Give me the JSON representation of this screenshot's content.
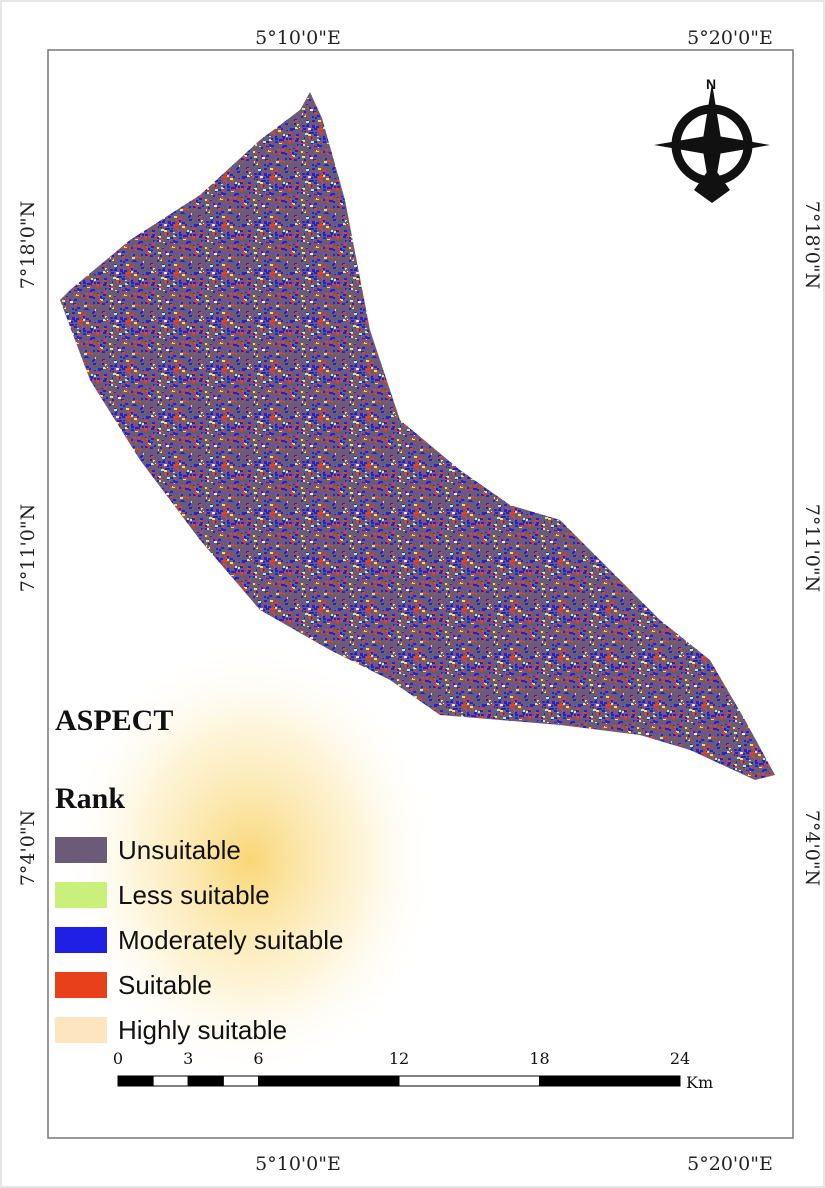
{
  "map": {
    "top_labels": [
      "5°10'0\"E",
      "5°20'0\"E"
    ],
    "bottom_labels": [
      "5°10'0\"E",
      "5°20'0\"E"
    ],
    "left_labels": [
      "7°18'0\"N",
      "7°11'0\"N",
      "7°4'0\"N"
    ],
    "right_labels": [
      "7°18'0\"N",
      "7°11'0\"N",
      "7°4'0\"N"
    ],
    "north": "N",
    "legend": {
      "title": "ASPECT",
      "subtitle": "Rank",
      "items": [
        {
          "label": "Unsuitable",
          "color": "#6b5a78"
        },
        {
          "label": "Less suitable",
          "color": "#c8f07a"
        },
        {
          "label": "Moderately suitable",
          "color": "#1f1fe6"
        },
        {
          "label": "Suitable",
          "color": "#e8401a"
        },
        {
          "label": "Highly suitable",
          "color": "#fde6bf"
        }
      ]
    },
    "scale": {
      "ticks": [
        0,
        3,
        6,
        12,
        18,
        24
      ],
      "unit": "Km"
    }
  }
}
